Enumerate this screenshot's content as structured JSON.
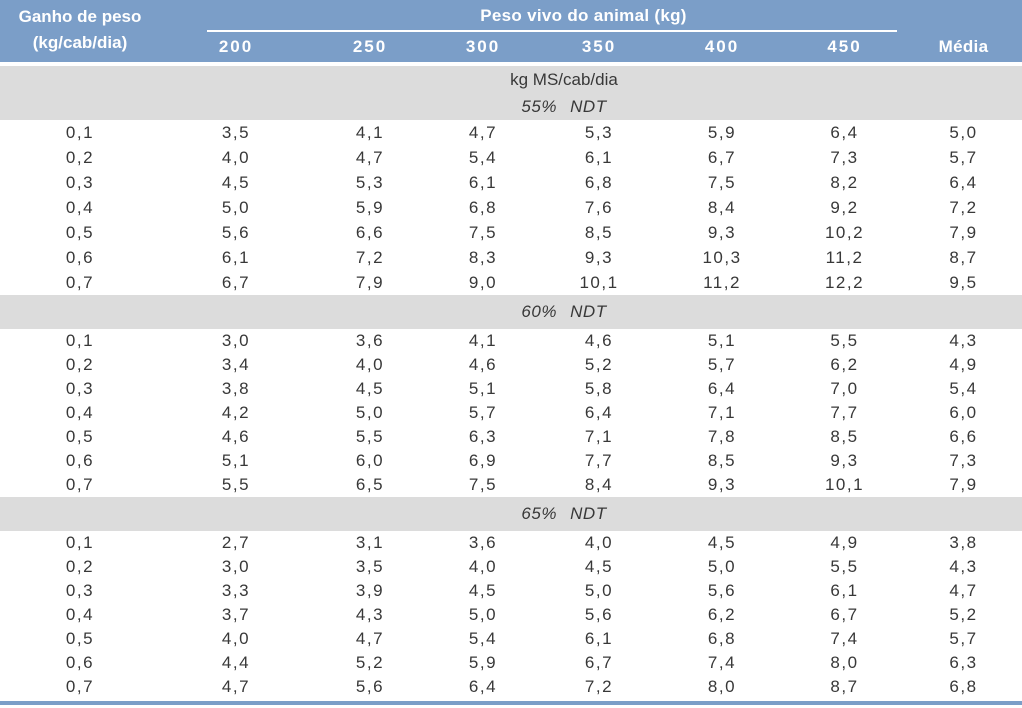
{
  "header": {
    "row_label_line1": "Ganho de peso",
    "row_label_line2": "(kg/cab/dia)",
    "group_label": "Peso vivo do animal (kg)",
    "weights": [
      "200",
      "250",
      "300",
      "350",
      "400",
      "450"
    ],
    "media_label": "Média"
  },
  "unit_label": "kg MS/cab/dia",
  "sections": [
    {
      "title": "55% NDT",
      "rows": [
        {
          "gain": "0,1",
          "values": [
            "3,5",
            "4,1",
            "4,7",
            "5,3",
            "5,9",
            "6,4"
          ],
          "media": "5,0"
        },
        {
          "gain": "0,2",
          "values": [
            "4,0",
            "4,7",
            "5,4",
            "6,1",
            "6,7",
            "7,3"
          ],
          "media": "5,7"
        },
        {
          "gain": "0,3",
          "values": [
            "4,5",
            "5,3",
            "6,1",
            "6,8",
            "7,5",
            "8,2"
          ],
          "media": "6,4"
        },
        {
          "gain": "0,4",
          "values": [
            "5,0",
            "5,9",
            "6,8",
            "7,6",
            "8,4",
            "9,2"
          ],
          "media": "7,2"
        },
        {
          "gain": "0,5",
          "values": [
            "5,6",
            "6,6",
            "7,5",
            "8,5",
            "9,3",
            "10,2"
          ],
          "media": "7,9"
        },
        {
          "gain": "0,6",
          "values": [
            "6,1",
            "7,2",
            "8,3",
            "9,3",
            "10,3",
            "11,2"
          ],
          "media": "8,7"
        },
        {
          "gain": "0,7",
          "values": [
            "6,7",
            "7,9",
            "9,0",
            "10,1",
            "11,2",
            "12,2"
          ],
          "media": "9,5"
        }
      ]
    },
    {
      "title": "60% NDT",
      "rows": [
        {
          "gain": "0,1",
          "values": [
            "3,0",
            "3,6",
            "4,1",
            "4,6",
            "5,1",
            "5,5"
          ],
          "media": "4,3"
        },
        {
          "gain": "0,2",
          "values": [
            "3,4",
            "4,0",
            "4,6",
            "5,2",
            "5,7",
            "6,2"
          ],
          "media": "4,9"
        },
        {
          "gain": "0,3",
          "values": [
            "3,8",
            "4,5",
            "5,1",
            "5,8",
            "6,4",
            "7,0"
          ],
          "media": "5,4"
        },
        {
          "gain": "0,4",
          "values": [
            "4,2",
            "5,0",
            "5,7",
            "6,4",
            "7,1",
            "7,7"
          ],
          "media": "6,0"
        },
        {
          "gain": "0,5",
          "values": [
            "4,6",
            "5,5",
            "6,3",
            "7,1",
            "7,8",
            "8,5"
          ],
          "media": "6,6"
        },
        {
          "gain": "0,6",
          "values": [
            "5,1",
            "6,0",
            "6,9",
            "7,7",
            "8,5",
            "9,3"
          ],
          "media": "7,3"
        },
        {
          "gain": "0,7",
          "values": [
            "5,5",
            "6,5",
            "7,5",
            "8,4",
            "9,3",
            "10,1"
          ],
          "media": "7,9"
        }
      ]
    },
    {
      "title": "65% NDT",
      "rows": [
        {
          "gain": "0,1",
          "values": [
            "2,7",
            "3,1",
            "3,6",
            "4,0",
            "4,5",
            "4,9"
          ],
          "media": "3,8"
        },
        {
          "gain": "0,2",
          "values": [
            "3,0",
            "3,5",
            "4,0",
            "4,5",
            "5,0",
            "5,5"
          ],
          "media": "4,3"
        },
        {
          "gain": "0,3",
          "values": [
            "3,3",
            "3,9",
            "4,5",
            "5,0",
            "5,6",
            "6,1"
          ],
          "media": "4,7"
        },
        {
          "gain": "0,4",
          "values": [
            "3,7",
            "4,3",
            "5,0",
            "5,6",
            "6,2",
            "6,7"
          ],
          "media": "5,2"
        },
        {
          "gain": "0,5",
          "values": [
            "4,0",
            "4,7",
            "5,4",
            "6,1",
            "6,8",
            "7,4"
          ],
          "media": "5,7"
        },
        {
          "gain": "0,6",
          "values": [
            "4,4",
            "5,2",
            "5,9",
            "6,7",
            "7,4",
            "8,0"
          ],
          "media": "6,3"
        },
        {
          "gain": "0,7",
          "values": [
            "4,7",
            "5,6",
            "6,4",
            "7,2",
            "8,0",
            "8,7"
          ],
          "media": "6,8"
        }
      ]
    }
  ],
  "colors": {
    "header_blue": "#7b9ec8",
    "band_gray": "#dcdcdc",
    "text_dark": "#383838",
    "header_text": "#ffffff"
  }
}
